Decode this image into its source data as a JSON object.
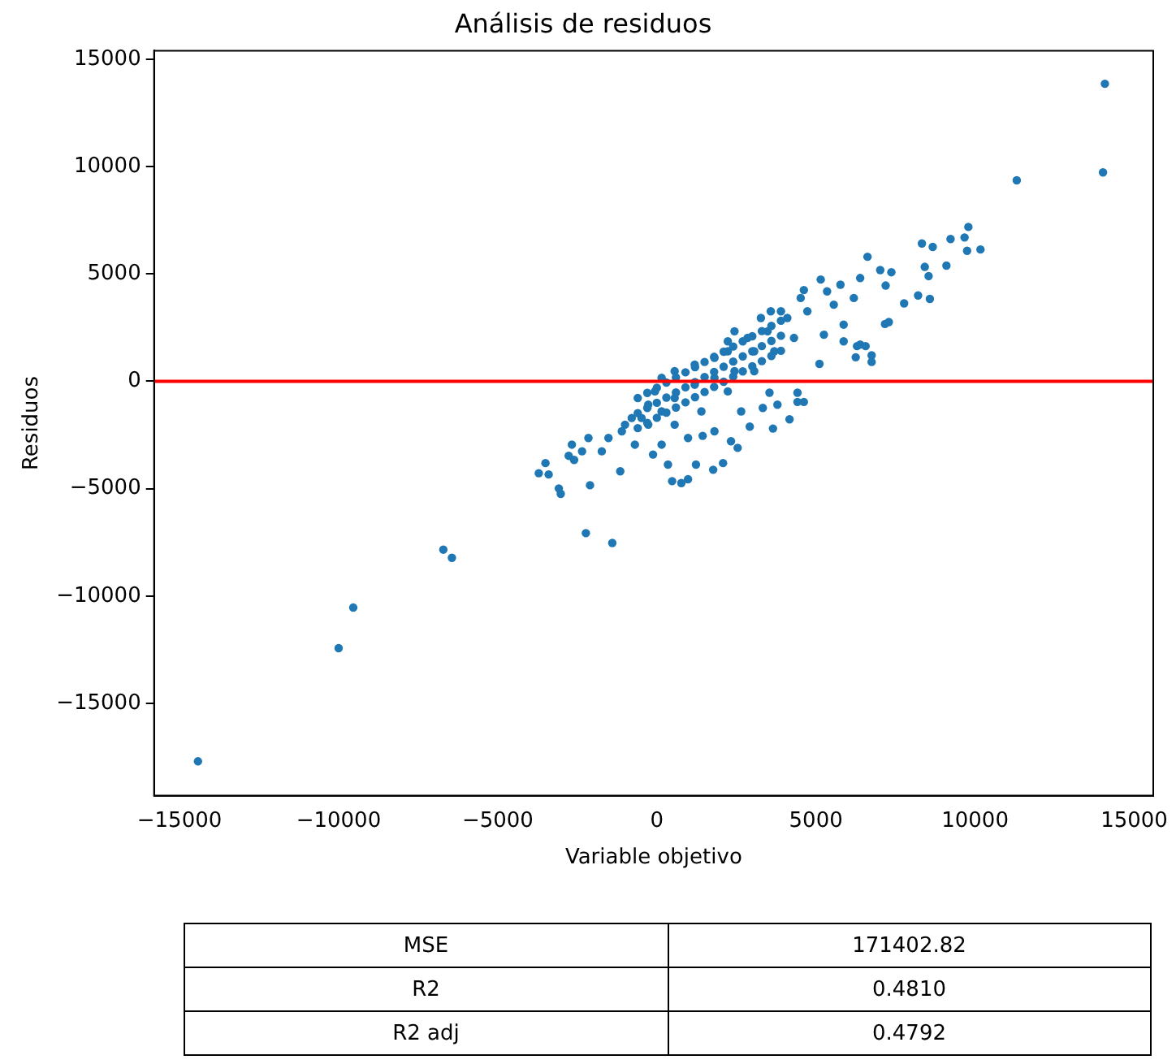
{
  "chart_data": {
    "type": "scatter",
    "title": "Análisis de residuos",
    "xlabel": "Variable objetivo",
    "ylabel": "Residuos",
    "xlim": [
      -15800,
      15600
    ],
    "xticks": [
      -15000,
      -10000,
      -5000,
      0,
      5000,
      10000,
      15000
    ],
    "ylim": [
      -19300,
      15400
    ],
    "yticks": [
      -15000,
      -10000,
      -5000,
      0,
      5000,
      10000,
      15000
    ],
    "grid": false,
    "legend": false,
    "marker": "circle",
    "ref_lines": [
      {
        "axis": "y",
        "value": 0,
        "color": "#ff0000"
      }
    ],
    "annotations": [
      "MSE",
      "171402.82",
      "R2",
      "0.4810",
      "R2 adj",
      "0.4792"
    ],
    "series": [
      {
        "color": "#1f77b4",
        "x": [
          14080,
          14020,
          11310,
          9790,
          9670,
          9230,
          10170,
          9750,
          9100,
          8330,
          8670,
          8420,
          8540,
          8210,
          7770,
          8580,
          7370,
          7020,
          7190,
          6620,
          7290,
          7170,
          6750,
          6750,
          6250,
          6560,
          6290,
          5150,
          5110,
          -2230,
          -1400,
          -6710,
          -6440,
          -9540,
          -10000,
          -14420,
          -3710,
          -3500,
          -3400,
          -3080,
          -3020,
          -2770,
          -2600,
          -2350,
          -2670,
          -2150,
          -2100,
          -1730,
          -1520,
          -1100,
          -1150,
          -1000,
          -790,
          480,
          770,
          980,
          1230,
          1770,
          2080,
          2330,
          2540,
          2920,
          3650,
          4170,
          4420,
          4420,
          4620,
          3540,
          3330,
          3790,
          1440,
          350,
          -120,
          -690,
          150,
          980,
          1810,
          2650,
          -480,
          -270,
          -60,
          150,
          560,
          1190,
          1810,
          2230,
          2850,
          3480,
          4100,
          4730,
          150,
          560,
          1190,
          1810,
          2440,
          -270,
          560,
          1400,
          2230,
          3060,
          3690,
          4310,
          2230,
          3270,
          3900,
          4520,
          5350,
          5770,
          6190,
          6390,
          5560,
          5870,
          5250,
          3060,
          6390,
          5870,
          3580,
          2440,
          4620,
          -600,
          -600,
          -600,
          -300,
          -300,
          -300,
          0,
          0,
          0,
          300,
          300,
          300,
          600,
          600,
          600,
          900,
          900,
          900,
          1200,
          1200,
          1200,
          1500,
          1500,
          1500,
          1800,
          1800,
          1800,
          2100,
          2100,
          2100,
          2400,
          2400,
          2400,
          2700,
          2700,
          2700,
          3000,
          3000,
          3000,
          3300,
          3300,
          3300,
          3600,
          3600,
          3600,
          3900,
          3900,
          3900
        ],
        "values": [
          13860,
          9730,
          9360,
          7190,
          6700,
          6630,
          6140,
          6080,
          5390,
          6420,
          6260,
          5330,
          4900,
          4000,
          3630,
          3840,
          5080,
          5180,
          4460,
          5800,
          2760,
          2670,
          1210,
          900,
          1120,
          1640,
          1640,
          4740,
          810,
          -7070,
          -7530,
          -7840,
          -8220,
          -10540,
          -12430,
          -17700,
          -4280,
          -3810,
          -4340,
          -4990,
          -5240,
          -3470,
          -3660,
          -3260,
          -2950,
          -2640,
          -4840,
          -3260,
          -2640,
          -2330,
          -4190,
          -2020,
          -1710,
          -4650,
          -4740,
          -4560,
          -3880,
          -4120,
          -3810,
          -2790,
          -3100,
          -2110,
          -2200,
          -1770,
          -530,
          -960,
          -960,
          -530,
          -1240,
          -1090,
          -2540,
          -3880,
          -3410,
          -2950,
          -2950,
          -2640,
          -2330,
          -1400,
          -1710,
          -1090,
          -470,
          160,
          470,
          780,
          1090,
          1400,
          2020,
          2330,
          2950,
          3260,
          -1400,
          -780,
          -160,
          160,
          470,
          -2020,
          -2020,
          -1400,
          -470,
          470,
          1400,
          2020,
          1860,
          2950,
          3260,
          3880,
          4190,
          4500,
          3880,
          4810,
          3570,
          1860,
          2170,
          1400,
          1710,
          2640,
          3260,
          2330,
          4250,
          -780,
          -1480,
          -2180,
          -540,
          -1240,
          -1940,
          -300,
          -1000,
          -1700,
          -60,
          -760,
          -1460,
          180,
          -520,
          -1220,
          420,
          -280,
          -980,
          660,
          -40,
          -740,
          900,
          200,
          -500,
          1140,
          440,
          -260,
          1380,
          680,
          -20,
          1620,
          920,
          220,
          1860,
          1160,
          460,
          2100,
          1400,
          700,
          2340,
          1640,
          940,
          2580,
          1880,
          1180,
          2820,
          2120,
          1420
        ]
      }
    ]
  }
}
